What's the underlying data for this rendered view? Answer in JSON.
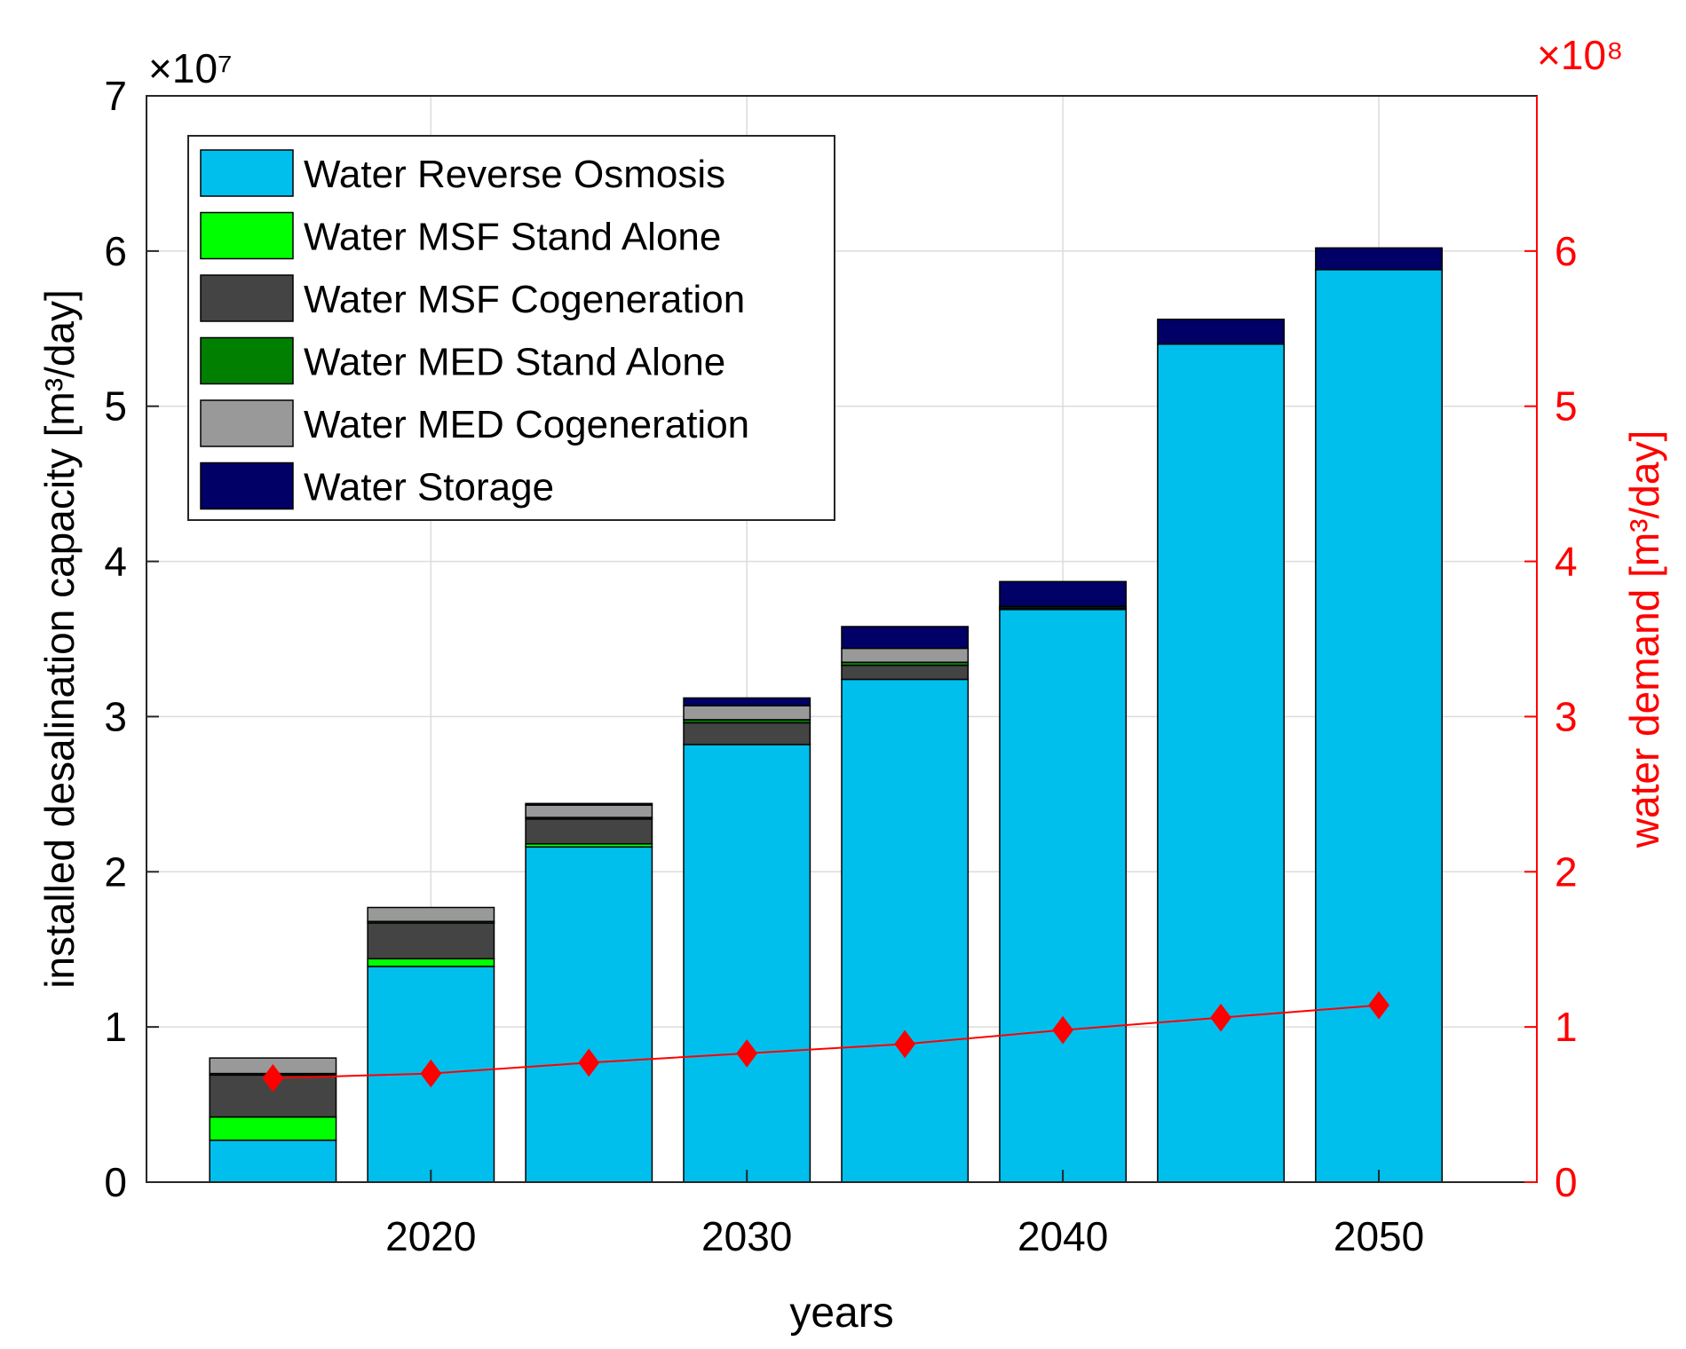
{
  "chart_data": {
    "type": "bar",
    "subtype": "stacked bar with line on secondary axis",
    "xlabel": "years",
    "ylabel_left": "installed desalination capacity [m³/day]",
    "ylabel_right": "water demand [m³/day]",
    "x_ticks": [
      "2020",
      "2030",
      "2040",
      "2050"
    ],
    "y_ticks_left": [
      "0",
      "1",
      "2",
      "3",
      "4",
      "5",
      "6",
      "7"
    ],
    "y_ticks_right": [
      "0",
      "1",
      "2",
      "3",
      "4",
      "5",
      "6"
    ],
    "left_exponent": "×10⁷",
    "right_exponent": "×10⁸",
    "xlim": [
      2011,
      2055
    ],
    "ylim_left": [
      0,
      70000000
    ],
    "ylim_right": [
      0,
      700000000
    ],
    "categories": [
      2015,
      2020,
      2025,
      2030,
      2035,
      2040,
      2045,
      2050
    ],
    "series": [
      {
        "name": "Water Reverse Osmosis",
        "color": "#00bfed",
        "values": [
          2700000,
          13900000,
          21600000,
          28200000,
          32400000,
          36900000,
          54000000,
          58800000
        ]
      },
      {
        "name": "Water MSF Stand Alone",
        "color": "#00ff00",
        "values": [
          1500000,
          500000,
          200000,
          0,
          0,
          0,
          0,
          0
        ]
      },
      {
        "name": "Water MSF Cogeneration",
        "color": "#444444",
        "values": [
          2700000,
          2300000,
          1600000,
          1400000,
          900000,
          100000,
          0,
          0
        ]
      },
      {
        "name": "Water MED Stand Alone",
        "color": "#007f00",
        "values": [
          100000,
          100000,
          100000,
          200000,
          200000,
          100000,
          0,
          0
        ]
      },
      {
        "name": "Water MED Cogeneration",
        "color": "#999999",
        "values": [
          1000000,
          900000,
          800000,
          900000,
          900000,
          0,
          0,
          0
        ]
      },
      {
        "name": "Water Storage",
        "color": "#000066",
        "values": [
          0,
          0,
          100000,
          500000,
          1400000,
          1600000,
          1600000,
          1400000
        ]
      }
    ],
    "line_series": {
      "name": "water demand",
      "color": "#ff0000",
      "axis": "right",
      "x": [
        2015,
        2020,
        2025,
        2030,
        2035,
        2040,
        2045,
        2050
      ],
      "values": [
        67000000,
        70000000,
        77000000,
        83000000,
        89000000,
        98000000,
        106000000,
        114000000
      ]
    },
    "legend_position": "top-left",
    "grid": true
  }
}
